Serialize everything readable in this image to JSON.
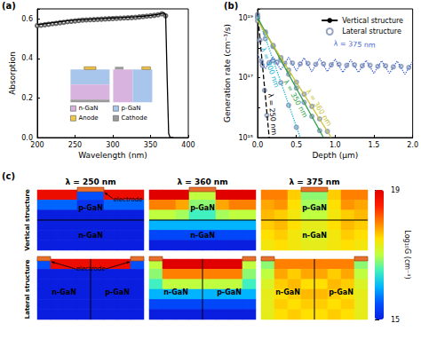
{
  "chart_data": [
    {
      "type": "line",
      "title": "(a)",
      "x_label": "Wavelength (nm)",
      "y_label": "Absorption",
      "xlim": [
        200,
        400
      ],
      "xticks": [
        200,
        250,
        300,
        350,
        400
      ],
      "ylim": [
        0,
        0.65
      ],
      "yticks": [
        {
          "value": 0,
          "label": "0.0"
        },
        0.2,
        0.4,
        0.6
      ],
      "series": [
        {
          "name": "Vertical structure",
          "type": "line",
          "color": "#000000",
          "line_style": "solid",
          "x": [
            200,
            210,
            220,
            230,
            240,
            250,
            260,
            270,
            280,
            290,
            300,
            310,
            320,
            330,
            340,
            350,
            360,
            365,
            368,
            370,
            372,
            374,
            376,
            380
          ],
          "values": [
            0.57,
            0.575,
            0.58,
            0.585,
            0.59,
            0.593,
            0.596,
            0.598,
            0.6,
            0.602,
            0.604,
            0.606,
            0.608,
            0.61,
            0.613,
            0.617,
            0.622,
            0.627,
            0.63,
            0.62,
            0.3,
            0.02,
            0,
            0
          ]
        },
        {
          "name": "Lateral structure",
          "type": "scatter",
          "color": "#444444",
          "marker": "circle-open",
          "x": [
            200,
            205,
            210,
            215,
            220,
            225,
            230,
            235,
            240,
            245,
            250,
            255,
            260,
            265,
            270,
            275,
            280,
            285,
            290,
            295,
            300,
            305,
            310,
            315,
            320,
            325,
            330,
            335,
            340,
            345,
            350,
            355,
            360,
            365,
            370
          ],
          "values": [
            0.565,
            0.567,
            0.57,
            0.572,
            0.575,
            0.577,
            0.58,
            0.582,
            0.585,
            0.587,
            0.589,
            0.591,
            0.593,
            0.594,
            0.595,
            0.596,
            0.597,
            0.598,
            0.599,
            0.6,
            0.601,
            0.602,
            0.603,
            0.604,
            0.605,
            0.606,
            0.607,
            0.609,
            0.611,
            0.613,
            0.615,
            0.617,
            0.62,
            0.625,
            0.615
          ]
        }
      ],
      "inset_legend": [
        {
          "label": "n-GaN",
          "color": "#d9b3e0"
        },
        {
          "label": "p-GaN",
          "color": "#a8c6ec"
        },
        {
          "label": "Anode",
          "color": "#f2c84b"
        },
        {
          "label": "Cathode",
          "color": "#9a9a9a"
        }
      ]
    },
    {
      "type": "line",
      "title": "(b)",
      "x_label": "Depth (μm)",
      "y_label": "Generation rate (cm⁻³/s)",
      "log": "y",
      "legend": "upper right",
      "xlim": [
        0,
        2
      ],
      "xticks": [
        {
          "value": 0,
          "label": "0.0"
        },
        0.5,
        {
          "value": 1,
          "label": "1.0"
        },
        1.5,
        {
          "value": 2,
          "label": "2.0"
        }
      ],
      "ylim": [
        1000000000000000.0,
        2e+19
      ],
      "yticks": [
        {
          "value": 1000000000000000.0,
          "label": "10¹⁵"
        },
        {
          "value": 1e+17,
          "label": "10¹⁷"
        },
        {
          "value": 1e+19,
          "label": "10¹⁹"
        }
      ],
      "series": [
        {
          "name": "Vertical structure",
          "type": "line",
          "color": "#000000",
          "line_style": "dashed",
          "x": [
            0,
            0.15
          ],
          "values": [
            1.5e+19,
            1000000000000000.0
          ],
          "annotation": {
            "text": "λ = 250 nm",
            "x": 0.19,
            "y": 6000000000000000.0
          }
        },
        {
          "name": "Lateral structure",
          "type": "scatter",
          "color": "#7d8fb3",
          "marker": "circle-open",
          "x": [
            0,
            0.03,
            0.06,
            0.09,
            0.12
          ],
          "values": [
            1.3e+19,
            1.8e+18,
            2.6e+17,
            3.8e+16,
            5500000000000000.0
          ]
        },
        {
          "name": "Vertical structure",
          "type": "line",
          "color": "#17b3d1",
          "line_style": "dotted",
          "x": [
            0,
            0.55
          ],
          "values": [
            1.2e+19,
            1000000000000000.0
          ],
          "annotation": {
            "text": "λ = 300 nm",
            "x": 0.16,
            "y": 2.2e+17
          }
        },
        {
          "name": "Lateral structure",
          "type": "scatter",
          "color": "#7d8fb3",
          "marker": "circle-open",
          "x": [
            0,
            0.1,
            0.2,
            0.3,
            0.4,
            0.5
          ],
          "values": [
            1.1e+19,
            2e+18,
            3.7e+17,
            6.8e+16,
            1.2e+16,
            2200000000000000.0
          ]
        },
        {
          "name": "Vertical structure",
          "type": "line",
          "color": "#2f9e47",
          "line_style": "solid",
          "x": [
            0,
            0.85
          ],
          "values": [
            1e+19,
            1000000000000000.0
          ],
          "annotation": {
            "text": "λ = 350 nm",
            "x": 0.49,
            "y": 2e+16
          }
        },
        {
          "name": "Lateral structure",
          "type": "scatter",
          "color": "#7d8fb3",
          "marker": "circle-open",
          "x": [
            0,
            0.1,
            0.2,
            0.3,
            0.4,
            0.5,
            0.6,
            0.7,
            0.8
          ],
          "values": [
            1e+19,
            3.4e+18,
            1.1e+18,
            3.9e+17,
            1.3e+17,
            4.5e+16,
            1.5e+16,
            5100000000000000.0,
            1700000000000000.0
          ]
        },
        {
          "name": "Vertical structure",
          "type": "line",
          "color": "#c8c030",
          "line_style": "solid",
          "x": [
            0,
            0.95
          ],
          "values": [
            8e+18,
            1000000000000000.0
          ],
          "annotation": {
            "text": "λ = 360 nm",
            "x": 0.79,
            "y": 1e+16
          }
        },
        {
          "name": "Lateral structure",
          "type": "scatter",
          "color": "#7d8fb3",
          "marker": "circle-open",
          "x": [
            0,
            0.1,
            0.2,
            0.3,
            0.4,
            0.5,
            0.6,
            0.7,
            0.8,
            0.9
          ],
          "values": [
            7.9e+18,
            3.1e+18,
            1.2e+18,
            4.7e+17,
            1.8e+17,
            7.1e+16,
            2.8e+16,
            1.1e+16,
            4200000000000000.0,
            1600000000000000.0
          ]
        },
        {
          "name": "Vertical structure",
          "type": "line",
          "color": "#3f63d4",
          "line_style": "dotted",
          "x": [
            0,
            0.1,
            0.2,
            0.3,
            0.4,
            0.5,
            0.6,
            0.7,
            0.8,
            0.9,
            1,
            1.1,
            1.2,
            1.3,
            1.4,
            1.5,
            1.6,
            1.7,
            1.8,
            1.9,
            2
          ],
          "values": [
            6e+17,
            2e+17,
            5e+17,
            1.8e+17,
            4.8e+17,
            1.7e+17,
            4.6e+17,
            1.6e+17,
            4.4e+17,
            1.6e+17,
            4.2e+17,
            1.5e+17,
            4e+17,
            1.5e+17,
            3.8e+17,
            1.4e+17,
            3.7e+17,
            1.4e+17,
            3.6e+17,
            1.3e+17,
            3.5e+17
          ],
          "annotation": {
            "text": "λ = 375 nm",
            "x": 1.25,
            "y": 1.3e+18
          }
        },
        {
          "name": "Lateral structure",
          "type": "scatter",
          "color": "#7d8fb3",
          "marker": "circle-open",
          "x": [
            0.05,
            0.15,
            0.25,
            0.35,
            0.45,
            0.55,
            0.65,
            0.75,
            0.85,
            0.95,
            1.05,
            1.15,
            1.25,
            1.35,
            1.45,
            1.55,
            1.65,
            1.75,
            1.85,
            1.95
          ],
          "values": [
            3.5e+17,
            3.2e+17,
            3.3e+17,
            3e+17,
            3.1e+17,
            2.9e+17,
            3e+17,
            2.8e+17,
            2.9e+17,
            2.7e+17,
            2.8e+17,
            2.6e+17,
            2.7e+17,
            2.5e+17,
            2.6e+17,
            2.4e+17,
            2.5e+17,
            2.3e+17,
            2.4e+17,
            2.2e+17
          ]
        }
      ]
    },
    {
      "type": "heatmap",
      "title": "(c)",
      "tick_labels": false,
      "rows": [
        {
          "label": "Vertical structure",
          "layers": [
            "p-GaN",
            "n-GaN"
          ],
          "annotation": "electrode"
        },
        {
          "label": "Lateral structure",
          "layers": [
            "n-GaN",
            "p-GaN"
          ],
          "annotation": "electrode"
        }
      ],
      "columns": [
        "λ = 250 nm",
        "λ = 360 nm",
        "λ = 375 nm"
      ],
      "cells": [
        [
          [
            [
              18.8,
              18.8,
              18.8,
              15.5,
              15.5,
              18.8,
              18.8,
              18.8
            ],
            [
              15.6,
              15.6,
              15.6,
              15.2,
              15.2,
              15.6,
              15.6,
              15.6
            ],
            [
              15,
              15,
              15,
              15,
              15,
              15,
              15,
              15
            ],
            [
              15,
              15,
              15,
              15,
              15,
              15,
              15,
              15
            ],
            [
              15,
              15,
              15,
              15,
              15,
              15,
              15,
              15
            ],
            [
              15,
              15,
              15,
              15,
              15,
              15,
              15,
              15
            ]
          ],
          [
            [
              19,
              19,
              19,
              17,
              17,
              19,
              19,
              19
            ],
            [
              18,
              18,
              17.8,
              16.8,
              16.8,
              17.8,
              18,
              18
            ],
            [
              17,
              17,
              16.9,
              16.5,
              16.5,
              16.9,
              17,
              17
            ],
            [
              16,
              16,
              16,
              16,
              16,
              16,
              16,
              16
            ],
            [
              15.4,
              15.4,
              15.4,
              15.4,
              15.4,
              15.4,
              15.4,
              15.4
            ],
            [
              15,
              15,
              15,
              15,
              15,
              15,
              15,
              15
            ]
          ],
          [
            [
              18,
              18,
              17.6,
              16.8,
              16.8,
              17.6,
              18,
              18
            ],
            [
              17.8,
              17.9,
              17.5,
              16.9,
              16.9,
              17.5,
              17.9,
              17.8
            ],
            [
              17.7,
              17.6,
              17.4,
              17,
              17,
              17.4,
              17.6,
              17.7
            ],
            [
              17.6,
              17.7,
              17.5,
              17.3,
              17.3,
              17.5,
              17.7,
              17.6
            ],
            [
              17.5,
              17.6,
              17.4,
              17.2,
              17.2,
              17.4,
              17.6,
              17.5
            ],
            [
              17.4,
              17.5,
              17.4,
              17.3,
              17.3,
              17.4,
              17.5,
              17.4
            ]
          ]
        ],
        [
          [
            [
              15.5,
              18.8,
              18.8,
              18.8,
              18.8,
              18.8,
              18.8,
              15.5
            ],
            [
              15,
              15,
              15,
              15,
              15,
              15,
              15,
              15
            ],
            [
              15,
              15,
              15,
              15,
              15,
              15,
              15,
              15
            ],
            [
              15,
              15,
              15,
              15,
              15,
              15,
              15,
              15
            ],
            [
              15,
              15,
              15,
              15,
              15,
              15,
              15,
              15
            ],
            [
              15,
              15,
              15,
              15,
              15,
              15,
              15,
              15
            ]
          ],
          [
            [
              17,
              19,
              19,
              19,
              19,
              19,
              19,
              17
            ],
            [
              16.8,
              18,
              18,
              18,
              18,
              18,
              18,
              16.8
            ],
            [
              16.5,
              17,
              17,
              17,
              17,
              17,
              17,
              16.5
            ],
            [
              16,
              16,
              16,
              16,
              16,
              16,
              16,
              16
            ],
            [
              15.4,
              15.4,
              15.4,
              15.4,
              15.4,
              15.4,
              15.4,
              15.4
            ],
            [
              15,
              15,
              15,
              15,
              15,
              15,
              15,
              15
            ]
          ],
          [
            [
              16.8,
              18,
              18,
              18,
              18,
              18,
              18,
              16.8
            ],
            [
              17,
              17.8,
              17.6,
              17.8,
              17.8,
              17.6,
              17.8,
              17
            ],
            [
              17.2,
              17.6,
              17.7,
              17.5,
              17.5,
              17.7,
              17.6,
              17.2
            ],
            [
              17.3,
              17.5,
              17.6,
              17.7,
              17.7,
              17.6,
              17.5,
              17.3
            ],
            [
              17.3,
              17.6,
              17.5,
              17.6,
              17.6,
              17.5,
              17.6,
              17.3
            ],
            [
              17.3,
              17.5,
              17.6,
              17.5,
              17.5,
              17.6,
              17.5,
              17.3
            ]
          ]
        ]
      ],
      "colorbar": {
        "title": "Log₁₀G (cm⁻³)",
        "range": [
          15,
          19
        ],
        "ticks": [
          15,
          19
        ]
      }
    }
  ]
}
